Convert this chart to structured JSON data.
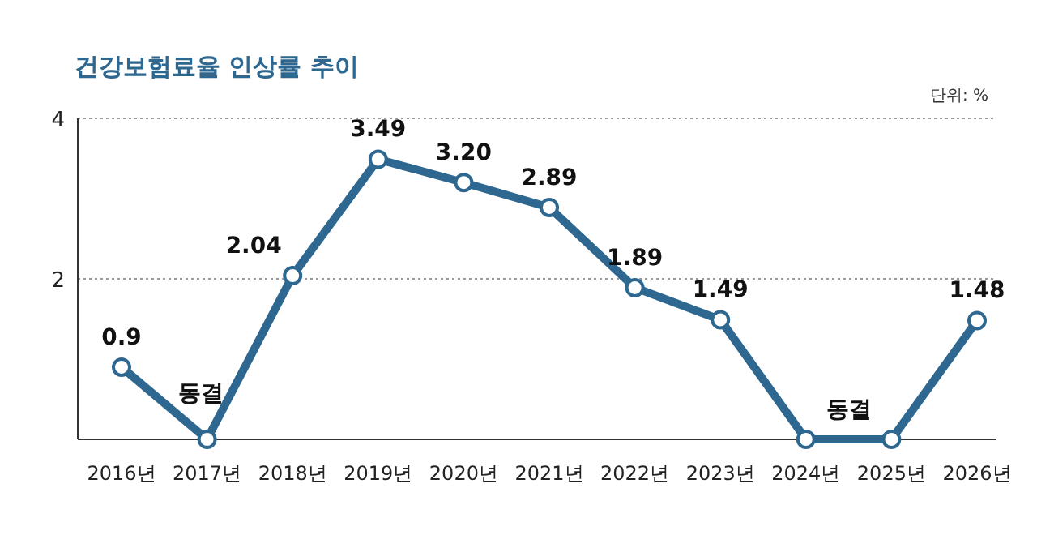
{
  "chart_data": {
    "type": "line",
    "title": "건강보험료율 인상률 추이",
    "annotations": [
      "단위: %"
    ],
    "categories": [
      "2016년",
      "2017년",
      "2018년",
      "2019년",
      "2020년",
      "2021년",
      "2022년",
      "2023년",
      "2024년",
      "2025년",
      "2026년"
    ],
    "values": [
      0.9,
      0,
      2.04,
      3.49,
      3.2,
      2.89,
      1.89,
      1.49,
      0,
      0,
      1.48
    ],
    "value_labels": [
      "0.9",
      "동결",
      "2.04",
      "3.49",
      "3.20",
      "2.89",
      "1.89",
      "1.49",
      "동결",
      null,
      "1.48"
    ],
    "color": "#2e6891",
    "ylim": [
      0,
      4
    ],
    "yticks": [
      2,
      4
    ],
    "grid": "y",
    "marker": "circle",
    "line_style": "solid"
  }
}
